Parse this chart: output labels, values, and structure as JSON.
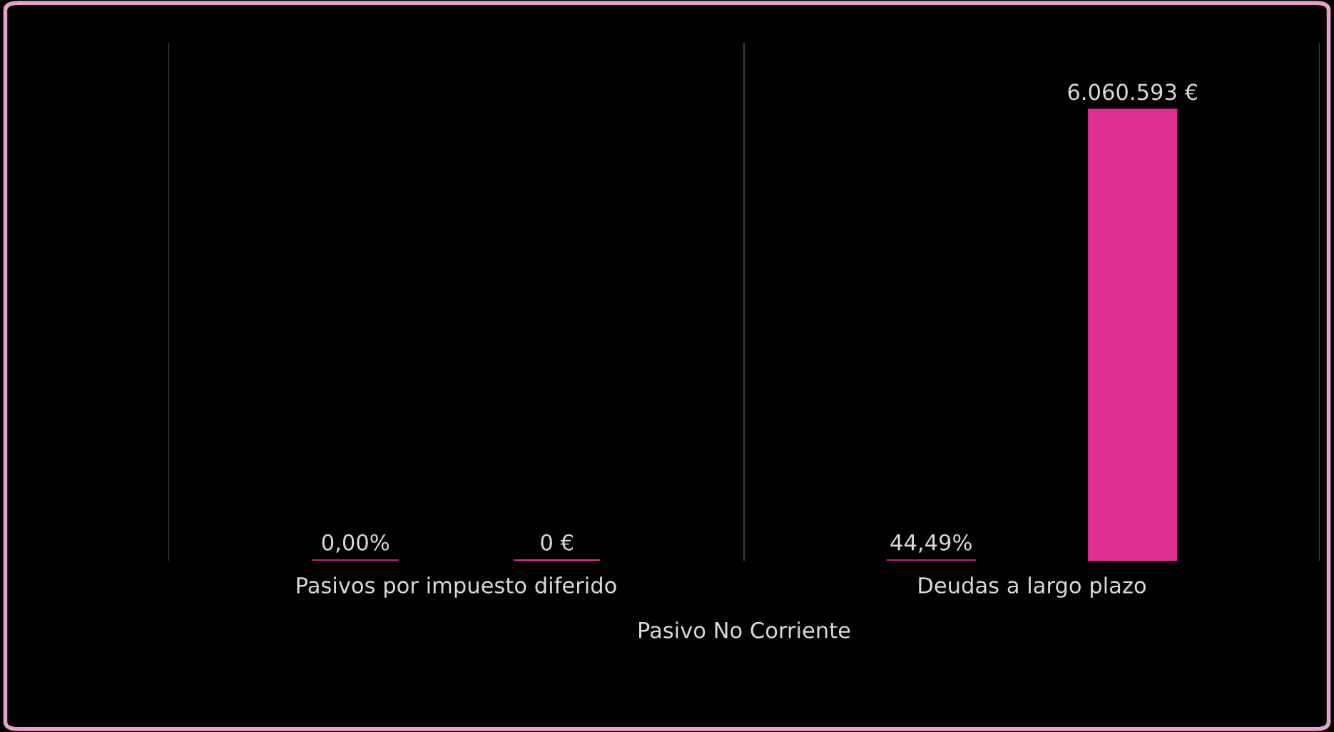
{
  "chart_data": {
    "type": "bar",
    "categories": [
      "Pasivos por impuesto diferido",
      "Deudas a largo plazo"
    ],
    "xlabel": "Pasivo No Corriente",
    "series": [
      {
        "color": "#c0207f",
        "values": [
          0,
          44.49
        ],
        "value_labels": [
          "0,00%",
          "44,49%"
        ]
      },
      {
        "color": "#e22f95",
        "values": [
          0,
          6060593
        ],
        "value_labels": [
          "0 €",
          "6.060.593 €"
        ]
      }
    ],
    "legend": false
  }
}
